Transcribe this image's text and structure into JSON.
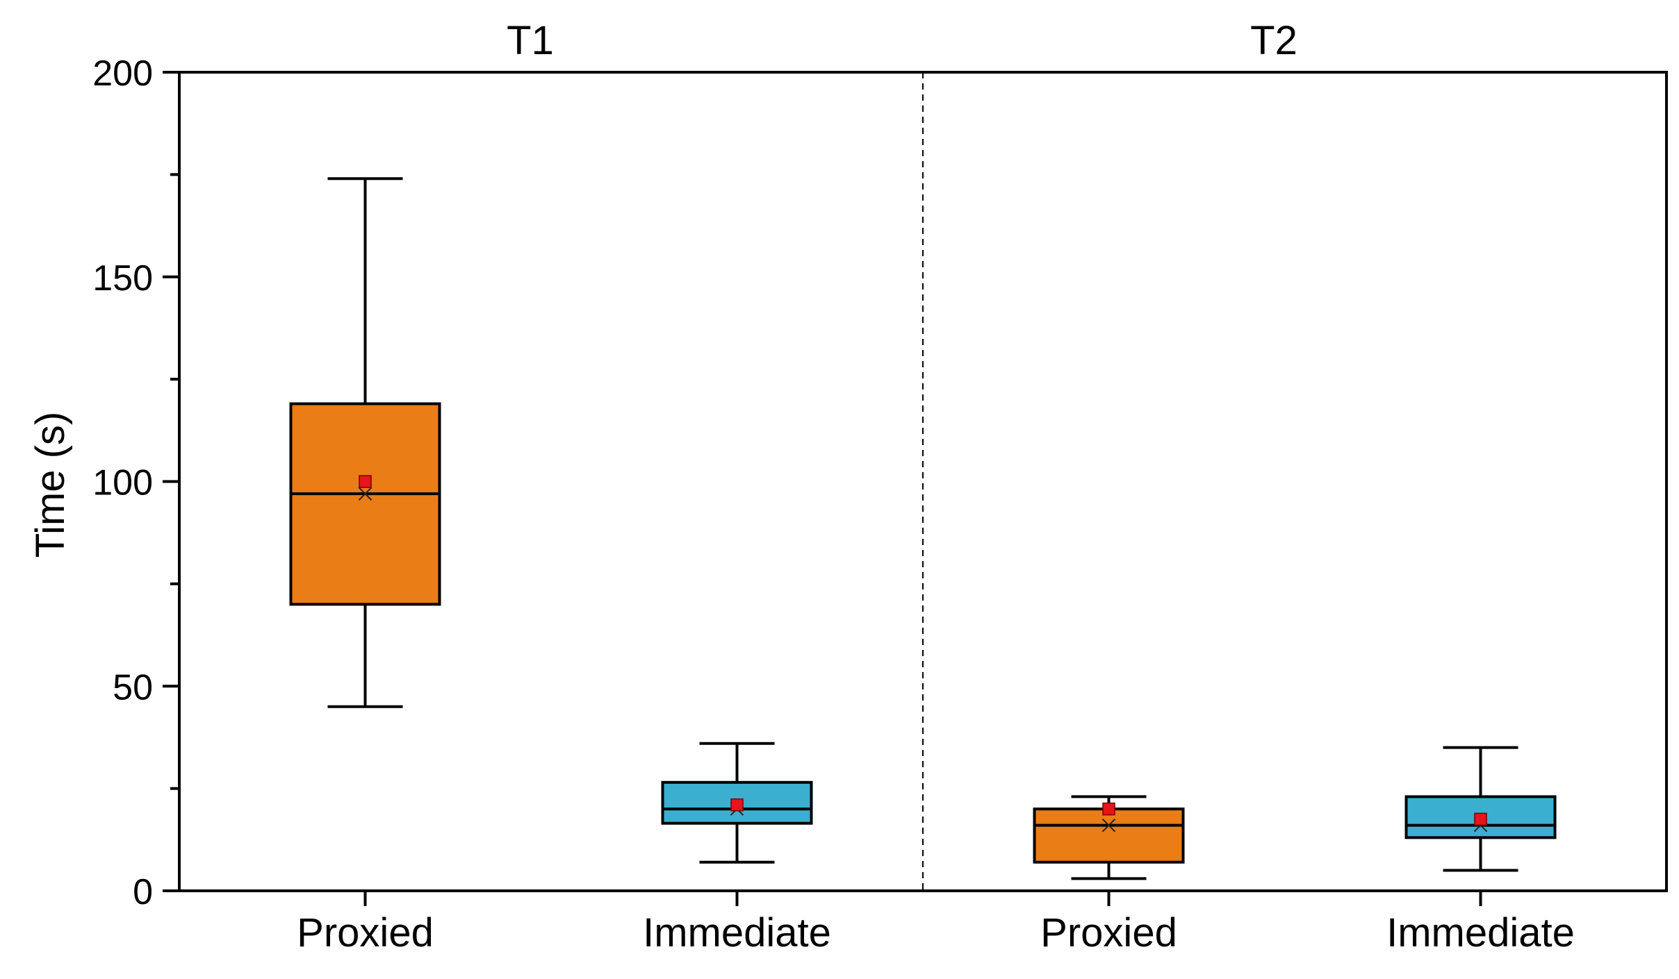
{
  "chart_data": {
    "type": "box",
    "title": "",
    "ylabel": "Time (s)",
    "xlabel": "",
    "ylim": [
      0,
      200
    ],
    "yticks_major": [
      0,
      50,
      100,
      150,
      200
    ],
    "yticks_minor": [
      25,
      75,
      125,
      175
    ],
    "groups": [
      {
        "name": "T1",
        "boxes": [
          {
            "category": "Proxied",
            "color": "#EA7D16",
            "whisker_low": 45,
            "q1": 70,
            "median": 97,
            "q3": 119,
            "whisker_high": 174,
            "mean": 100,
            "x_marker": 97
          },
          {
            "category": "Immediate",
            "color": "#3BAFD0",
            "whisker_low": 7,
            "q1": 16.5,
            "median": 20,
            "q3": 26.5,
            "whisker_high": 36,
            "mean": 21,
            "x_marker": 20
          }
        ]
      },
      {
        "name": "T2",
        "boxes": [
          {
            "category": "Proxied",
            "color": "#EA7D16",
            "whisker_low": 3,
            "q1": 7,
            "median": 16,
            "q3": 20,
            "whisker_high": 23,
            "mean": 20,
            "x_marker": 16
          },
          {
            "category": "Immediate",
            "color": "#3BAFD0",
            "whisker_low": 5,
            "q1": 13,
            "median": 16,
            "q3": 23,
            "whisker_high": 35,
            "mean": 17.5,
            "x_marker": 16
          }
        ]
      }
    ],
    "mean_marker_color": "#E8141B",
    "separator": "dashed line between groups"
  }
}
